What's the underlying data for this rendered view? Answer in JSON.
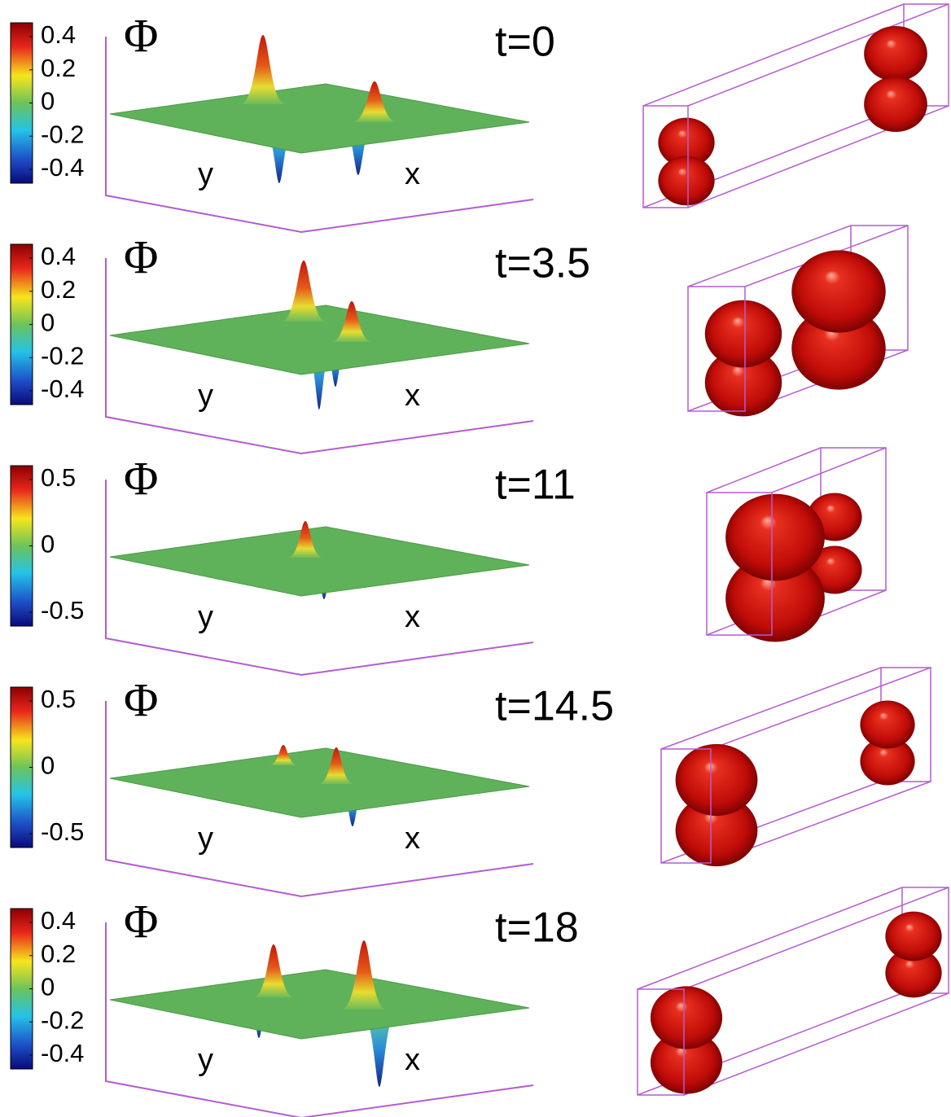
{
  "panels": [
    {
      "symbol": "Φ",
      "colorbar_ticks": [
        0.4,
        0.2,
        0,
        -0.2,
        -0.4
      ],
      "y_label": "y",
      "x_label": "x",
      "time": "t=0"
    },
    {
      "symbol": "Φ",
      "colorbar_ticks": [
        0.4,
        0.2,
        0,
        -0.2,
        -0.4
      ],
      "y_label": "y",
      "x_label": "x",
      "time": "t=3.5"
    },
    {
      "symbol": "Φ",
      "colorbar_ticks": [
        0.5,
        0,
        -0.5
      ],
      "y_label": "y",
      "x_label": "x",
      "time": "t=11"
    },
    {
      "symbol": "Φ",
      "colorbar_ticks": [
        0.5,
        0,
        -0.5
      ],
      "y_label": "y",
      "x_label": "x",
      "time": "t=14.5"
    },
    {
      "symbol": "Φ",
      "colorbar_ticks": [
        0.4,
        0.2,
        0,
        -0.2,
        -0.4
      ],
      "y_label": "y",
      "x_label": "x",
      "time": "t=18"
    }
  ]
}
